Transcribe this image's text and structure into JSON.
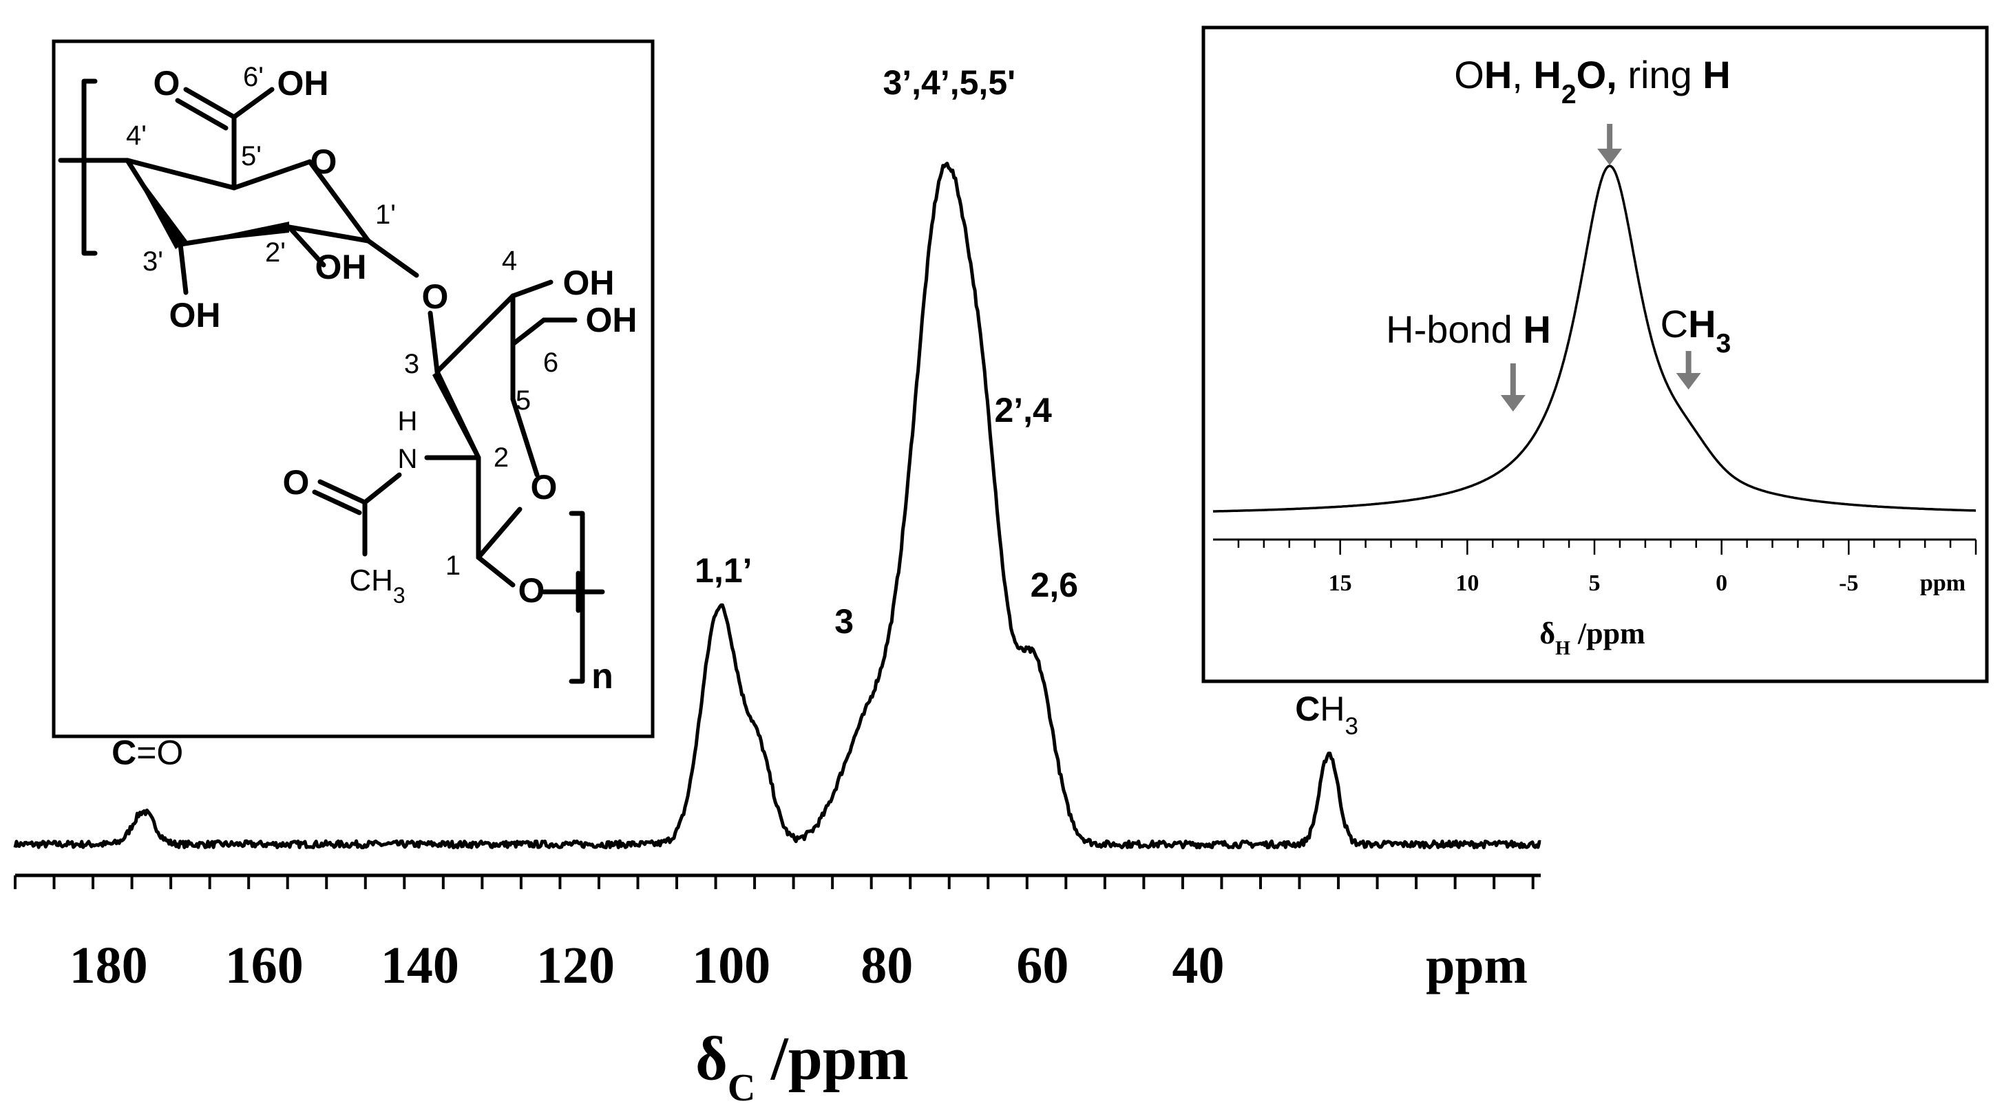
{
  "chart_data": [
    {
      "type": "line",
      "role": "13C spectrum",
      "xlabel_symbol": "δ",
      "xlabel_sub": "C",
      "xlabel_unit": " /ppm",
      "x_unit_label": "ppm",
      "xlim": [
        192,
        -4
      ],
      "ylim": [
        0,
        100
      ],
      "x_ticks": [
        "180",
        "160",
        "140",
        "120",
        "100",
        "80",
        "60",
        "40"
      ],
      "x_tick_values": [
        180,
        160,
        140,
        120,
        100,
        80,
        60,
        40
      ],
      "grid": false,
      "peaks": [
        {
          "name": "C=O",
          "ppm": 175.5,
          "height": 4.5,
          "width": 1.4
        },
        {
          "name": "1,1'",
          "ppm": 101.5,
          "height": 32.5,
          "width": 2.3
        },
        {
          "name": "1-shoulder",
          "ppm": 96.5,
          "height": 12,
          "width": 1.8
        },
        {
          "name": "3",
          "ppm": 82.5,
          "height": 15,
          "width": 3.5
        },
        {
          "name": "3',4',5,5'",
          "ppm": 72.5,
          "height": 92,
          "width": 4.0
        },
        {
          "name": "2',4",
          "ppm": 67,
          "height": 23,
          "width": 2.2
        },
        {
          "name": "2,6",
          "ppm": 61,
          "height": 24,
          "width": 2.4
        },
        {
          "name": "CH3",
          "ppm": 23.2,
          "height": 12.5,
          "width": 1.2
        }
      ],
      "baseline": 2.0,
      "annotations": [
        {
          "id": "co",
          "parts": [
            {
              "t": "C",
              "b": true
            },
            {
              "t": "=O",
              "b": false
            }
          ],
          "ppm": 175,
          "level": 13
        },
        {
          "id": "c11",
          "parts": [
            {
              "t": "1,1’",
              "b": true
            }
          ],
          "ppm": 101,
          "level": 38
        },
        {
          "id": "c3",
          "parts": [
            {
              "t": "3",
              "b": true
            }
          ],
          "ppm": 85.5,
          "level": 31
        },
        {
          "id": "c3445",
          "parts": [
            {
              "t": "3’,4’,5,5'",
              "b": true
            }
          ],
          "ppm": 72,
          "level": 105
        },
        {
          "id": "c24",
          "parts": [
            {
              "t": "2’,4",
              "b": true
            }
          ],
          "ppm": 62.5,
          "level": 60
        },
        {
          "id": "c26",
          "parts": [
            {
              "t": "2,6",
              "b": true
            }
          ],
          "ppm": 58.5,
          "level": 36
        },
        {
          "id": "ch3",
          "parts": [
            {
              "t": "C",
              "b": true
            },
            {
              "t": "H",
              "b": false
            },
            {
              "t": "3",
              "b": false,
              "sub": true
            }
          ],
          "ppm": 23.5,
          "level": 19
        }
      ]
    },
    {
      "type": "line",
      "role": "1H spectrum inset",
      "xlabel_symbol": "δ",
      "xlabel_sub": "H",
      "xlabel_unit": " /ppm",
      "x_unit_label": "ppm",
      "xlim": [
        20,
        -10
      ],
      "ylim": [
        0,
        100
      ],
      "x_ticks": [
        "15",
        "10",
        "5",
        "0",
        "-5"
      ],
      "x_tick_values": [
        15,
        10,
        5,
        0,
        -5
      ],
      "grid": false,
      "peak_center": 4.4,
      "peak_height": 88,
      "peak_halfwidth": 1.6,
      "shoulder_ppm": 1.3,
      "annotations": [
        {
          "id": "oh",
          "parts": [
            {
              "t": "O",
              "b": false
            },
            {
              "t": "H",
              "b": true
            },
            {
              "t": ", ",
              "b": false
            },
            {
              "t": "H",
              "b": true
            },
            {
              "t": "2",
              "b": true,
              "sub": true
            },
            {
              "t": "O, ",
              "b": true
            },
            {
              "t": "ring ",
              "b": false
            },
            {
              "t": "H",
              "b": true
            }
          ],
          "arrow_ppm": 4.4
        },
        {
          "id": "hbond",
          "parts": [
            {
              "t": "H-bond ",
              "b": false
            },
            {
              "t": "H",
              "b": true
            }
          ],
          "arrow_ppm": 8.2
        },
        {
          "id": "ch3",
          "parts": [
            {
              "t": "C",
              "b": false
            },
            {
              "t": "H",
              "b": true
            },
            {
              "t": "3",
              "b": true,
              "sub": true
            }
          ],
          "arrow_ppm": 1.3
        }
      ]
    }
  ],
  "structure": {
    "labels": {
      "c6p": "6'",
      "oh6": "OH",
      "o6": "O",
      "c4p": "4'",
      "c5p": "5'",
      "or": "O",
      "c1p": "1'",
      "c3p": "3'",
      "c2p": "2'",
      "oh2p": "OH",
      "oh3p": "OH",
      "ob": "O",
      "c4": "4",
      "oh4": "OH",
      "oh6b": "OH",
      "c6": "6",
      "c3": "3",
      "nh_h": "H",
      "nh": "N",
      "c5": "5",
      "c2": "2",
      "o5": "O",
      "oac": "O",
      "c1": "1",
      "ch3": "CH",
      "ch3sub": "3",
      "o1": "O",
      "n": "n"
    }
  }
}
